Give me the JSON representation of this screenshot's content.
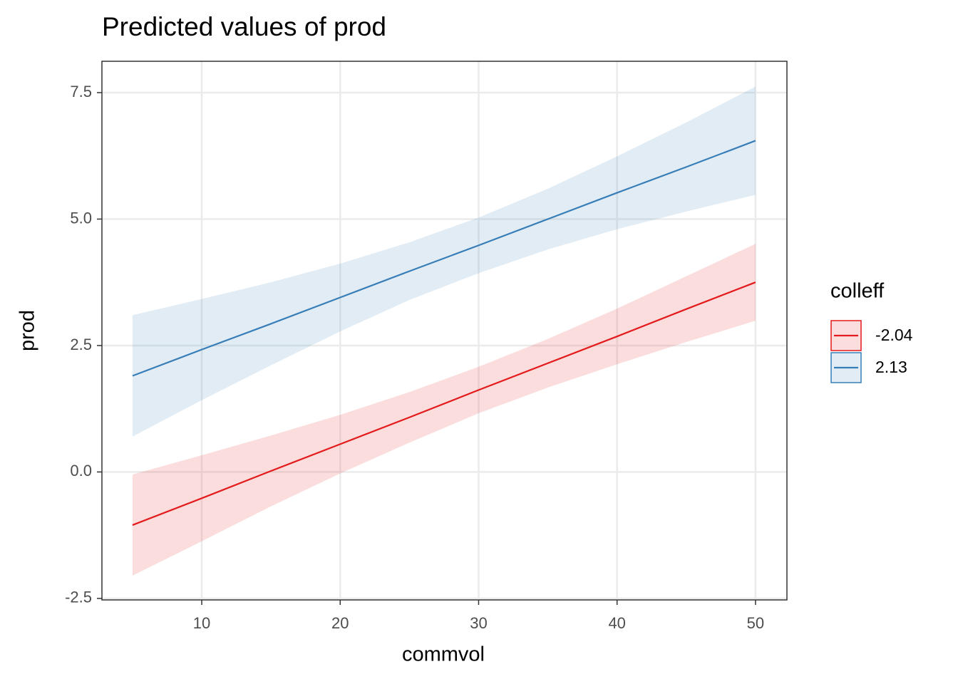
{
  "chart_data": {
    "type": "line",
    "title": "Predicted values of prod",
    "x_label": "commvol",
    "y_label": "prod",
    "legend_title": "colleff",
    "x": [
      5,
      10,
      15,
      20,
      25,
      30,
      35,
      40,
      45,
      50
    ],
    "series": [
      {
        "name": "-2.04",
        "color": "#e41a1c",
        "values": [
          -1.05,
          -0.52,
          0.02,
          0.55,
          1.08,
          1.62,
          2.15,
          2.68,
          3.22,
          3.75
        ],
        "upper": [
          -0.05,
          0.33,
          0.72,
          1.13,
          1.58,
          2.08,
          2.63,
          3.23,
          3.87,
          4.51
        ],
        "lower": [
          -2.05,
          -1.37,
          -0.68,
          -0.03,
          0.58,
          1.16,
          1.67,
          2.13,
          2.57,
          2.99
        ]
      },
      {
        "name": "2.13",
        "color": "#377eb8",
        "values": [
          1.9,
          2.42,
          2.93,
          3.45,
          3.97,
          4.48,
          5.0,
          5.52,
          6.03,
          6.55
        ],
        "upper": [
          3.1,
          3.42,
          3.75,
          4.12,
          4.54,
          5.03,
          5.6,
          6.24,
          6.91,
          7.62
        ],
        "lower": [
          0.7,
          1.42,
          2.11,
          2.78,
          3.4,
          3.93,
          4.4,
          4.8,
          5.15,
          5.48
        ]
      }
    ],
    "xlim": [
      2.79,
      52.27
    ],
    "ylim": [
      -2.53,
      8.12
    ],
    "xticks": [
      10,
      20,
      30,
      40,
      50
    ],
    "yticks": [
      -2.5,
      {
        "value": 0,
        "label": "0.0"
      },
      2.5,
      {
        "value": 5,
        "label": "5.0"
      },
      7.5
    ],
    "grid": true,
    "legend_position": "right"
  }
}
